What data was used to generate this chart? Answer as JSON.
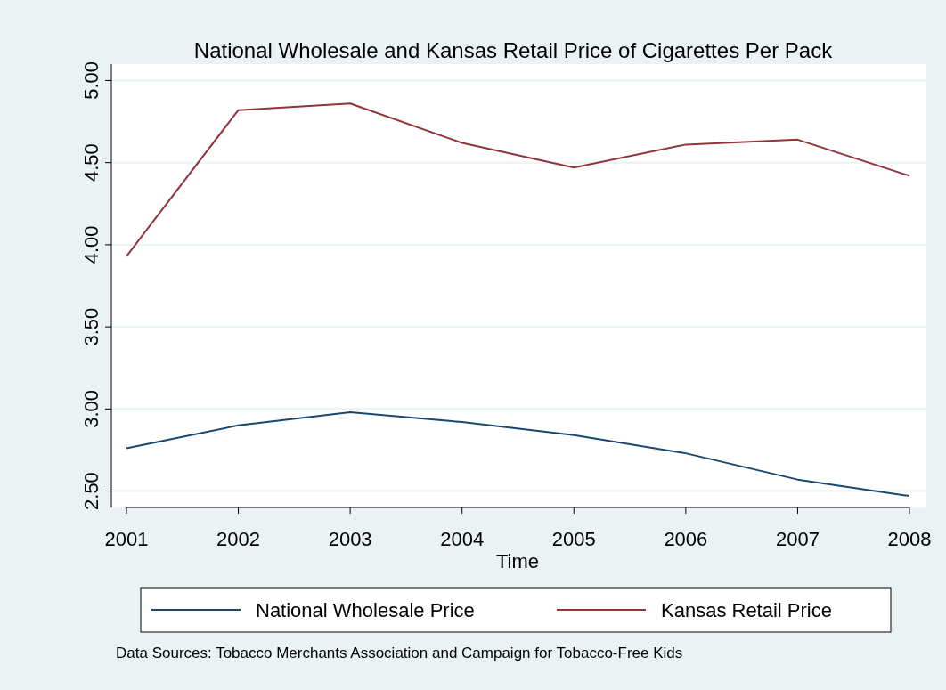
{
  "chart_data": {
    "type": "line",
    "title": "National Wholesale and Kansas Retail Price of Cigarettes Per Pack",
    "xlabel": "Time",
    "x": [
      2001,
      2002,
      2003,
      2004,
      2005,
      2006,
      2007,
      2008
    ],
    "series": [
      {
        "name": "National Wholesale Price",
        "color": "#1a476f",
        "values": [
          2.76,
          2.9,
          2.98,
          2.92,
          2.84,
          2.73,
          2.57,
          2.47
        ]
      },
      {
        "name": "Kansas Retail Price",
        "color": "#90353b",
        "values": [
          3.93,
          4.82,
          4.86,
          4.62,
          4.47,
          4.61,
          4.64,
          4.42
        ]
      }
    ],
    "xlim": [
      2001,
      2008
    ],
    "xticks": [
      2001,
      2002,
      2003,
      2004,
      2005,
      2006,
      2007,
      2008
    ],
    "ylim": [
      2.4,
      5.1
    ],
    "yticks": [
      {
        "value": 2.5,
        "label": "2.50"
      },
      {
        "value": 3,
        "label": "3.00"
      },
      {
        "value": 3.5,
        "label": "3.50"
      },
      {
        "value": 4,
        "label": "4.00"
      },
      {
        "value": 4.5,
        "label": "4.50"
      },
      {
        "value": 5,
        "label": "5.00"
      }
    ],
    "grid": "y",
    "legend": "bottom",
    "marker": "none",
    "line_style": "solid",
    "annotations": [
      "Data Sources: Tobacco Merchants Association and Campaign for Tobacco-Free Kids"
    ]
  }
}
